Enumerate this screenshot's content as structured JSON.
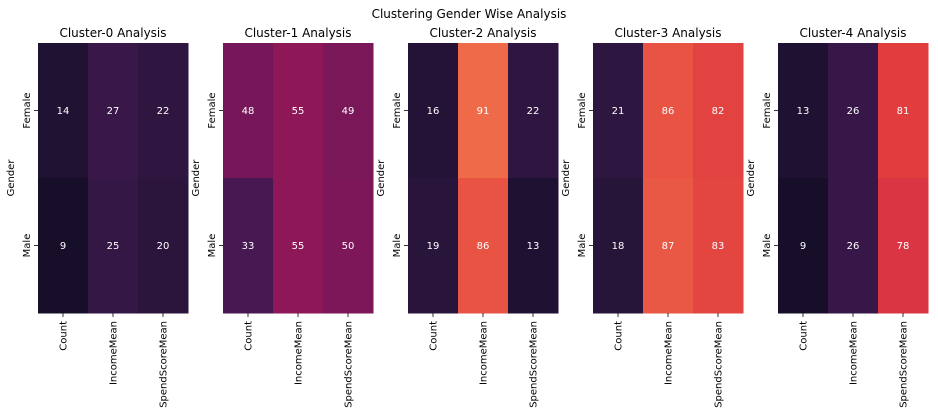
{
  "title": "Clustering Gender Wise Analysis",
  "chart_data": [
    {
      "type": "heatmap",
      "title": "Cluster-0 Analysis",
      "ylabel": "Gender",
      "rows": [
        "Female",
        "Male"
      ],
      "columns": [
        "Count",
        "IncomeMean",
        "SpendScoreMean"
      ],
      "values": [
        [
          14,
          27,
          22
        ],
        [
          9,
          25,
          20
        ]
      ],
      "colorbar": false
    },
    {
      "type": "heatmap",
      "title": "Cluster-1 Analysis",
      "ylabel": "Gender",
      "rows": [
        "Female",
        "Male"
      ],
      "columns": [
        "Count",
        "IncomeMean",
        "SpendScoreMean"
      ],
      "values": [
        [
          48,
          55,
          49
        ],
        [
          33,
          55,
          50
        ]
      ],
      "colorbar": false
    },
    {
      "type": "heatmap",
      "title": "Cluster-2 Analysis",
      "ylabel": "Gender",
      "rows": [
        "Female",
        "Male"
      ],
      "columns": [
        "Count",
        "IncomeMean",
        "SpendScoreMean"
      ],
      "values": [
        [
          16,
          91,
          22
        ],
        [
          19,
          86,
          13
        ]
      ],
      "colorbar": false
    },
    {
      "type": "heatmap",
      "title": "Cluster-3 Analysis",
      "ylabel": "Gender",
      "rows": [
        "Female",
        "Male"
      ],
      "columns": [
        "Count",
        "IncomeMean",
        "SpendScoreMean"
      ],
      "values": [
        [
          21,
          86,
          82
        ],
        [
          18,
          87,
          83
        ]
      ],
      "colorbar": false
    },
    {
      "type": "heatmap",
      "title": "Cluster-4 Analysis",
      "ylabel": "Gender",
      "rows": [
        "Female",
        "Male"
      ],
      "columns": [
        "Count",
        "IncomeMean",
        "SpendScoreMean"
      ],
      "values": [
        [
          13,
          26,
          81
        ],
        [
          9,
          26,
          78
        ]
      ],
      "colorbar": false
    }
  ]
}
